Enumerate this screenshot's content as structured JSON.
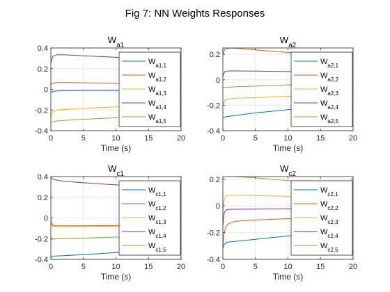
{
  "figure_title": "Fig 7: NN Weights Responses",
  "chart_data": [
    {
      "type": "line",
      "title_base": "W",
      "title_sub": "a1",
      "xlabel": "Time (s)",
      "xlim": [
        0,
        20
      ],
      "ylim": [
        -0.4,
        0.4
      ],
      "xticks": [
        0,
        5,
        10,
        15,
        20
      ],
      "yticks": [
        -0.4,
        -0.2,
        0,
        0.2,
        0.4
      ],
      "grid": true,
      "legend_position": "top-right",
      "series": [
        {
          "name_base": "W",
          "name_sub": "a1,1",
          "color": "#0072BD",
          "x": [
            0,
            0.3,
            1,
            2,
            5,
            10,
            15,
            20
          ],
          "y": [
            -0.03,
            -0.02,
            -0.015,
            -0.013,
            -0.012,
            -0.012,
            -0.012,
            -0.012
          ]
        },
        {
          "name_base": "W",
          "name_sub": "a1,2",
          "color": "#D95319",
          "x": [
            0,
            0.3,
            1,
            2,
            5,
            10,
            15,
            20
          ],
          "y": [
            0.05,
            0.06,
            0.065,
            0.065,
            0.063,
            0.058,
            0.055,
            0.053
          ]
        },
        {
          "name_base": "W",
          "name_sub": "a1,3",
          "color": "#EDB120",
          "x": [
            0,
            0.3,
            1,
            2,
            5,
            10,
            15,
            20
          ],
          "y": [
            -0.27,
            -0.22,
            -0.2,
            -0.195,
            -0.185,
            -0.17,
            -0.16,
            -0.15
          ]
        },
        {
          "name_base": "W",
          "name_sub": "a1,4",
          "color": "#7E2F8E",
          "x": [
            0,
            0.3,
            1,
            2,
            5,
            10,
            15,
            20
          ],
          "y": [
            0.25,
            0.32,
            0.335,
            0.335,
            0.325,
            0.31,
            0.295,
            0.28
          ]
        },
        {
          "name_base": "W",
          "name_sub": "a1,5",
          "color": "#77AC30",
          "x": [
            0,
            0.5,
            2,
            5,
            10,
            15,
            20
          ],
          "y": [
            -0.32,
            -0.31,
            -0.3,
            -0.29,
            -0.275,
            -0.26,
            -0.245
          ]
        }
      ]
    },
    {
      "type": "line",
      "title_base": "W",
      "title_sub": "a2",
      "xlabel": "Time (s)",
      "xlim": [
        0,
        20
      ],
      "ylim": [
        -0.4,
        0.25
      ],
      "xticks": [
        0,
        5,
        10,
        15,
        20
      ],
      "yticks": [
        -0.4,
        -0.2,
        0,
        0.2
      ],
      "grid": true,
      "legend_position": "top-right",
      "series": [
        {
          "name_base": "W",
          "name_sub": "a2,1",
          "color": "#0072BD",
          "x": [
            0,
            0.5,
            2,
            5,
            10,
            15,
            20
          ],
          "y": [
            -0.3,
            -0.29,
            -0.28,
            -0.26,
            -0.235,
            -0.215,
            -0.2
          ]
        },
        {
          "name_base": "W",
          "name_sub": "a2,2",
          "color": "#D95319",
          "x": [
            0,
            0.3,
            1,
            2,
            5,
            10,
            15,
            20
          ],
          "y": [
            0.2,
            0.24,
            0.25,
            0.248,
            0.235,
            0.215,
            0.2,
            0.19
          ]
        },
        {
          "name_base": "W",
          "name_sub": "a2,3",
          "color": "#EDB120",
          "x": [
            0,
            0.3,
            1,
            2,
            5,
            10,
            15,
            20
          ],
          "y": [
            -0.2,
            -0.16,
            -0.15,
            -0.145,
            -0.14,
            -0.13,
            -0.12,
            -0.11
          ]
        },
        {
          "name_base": "W",
          "name_sub": "a2,4",
          "color": "#7E2F8E",
          "x": [
            0,
            0.3,
            1,
            2,
            5,
            10,
            15,
            20
          ],
          "y": [
            0.03,
            0.065,
            0.07,
            0.07,
            0.068,
            0.065,
            0.062,
            0.06
          ]
        },
        {
          "name_base": "W",
          "name_sub": "a2,5",
          "color": "#77AC30",
          "x": [
            0,
            0.5,
            2,
            5,
            10,
            15,
            20
          ],
          "y": [
            -0.06,
            -0.06,
            -0.055,
            -0.05,
            -0.04,
            -0.035,
            -0.03
          ]
        }
      ]
    },
    {
      "type": "line",
      "title_base": "W",
      "title_sub": "c1",
      "xlabel": "Time (s)",
      "xlim": [
        0,
        20
      ],
      "ylim": [
        -0.4,
        0.4
      ],
      "xticks": [
        0,
        5,
        10,
        15,
        20
      ],
      "yticks": [
        -0.4,
        -0.2,
        0,
        0.2,
        0.4
      ],
      "grid": true,
      "legend_position": "top-right",
      "series": [
        {
          "name_base": "W",
          "name_sub": "c1,1",
          "color": "#0072BD",
          "x": [
            0,
            2,
            5,
            10,
            15,
            20
          ],
          "y": [
            -0.37,
            -0.365,
            -0.355,
            -0.335,
            -0.315,
            -0.295
          ]
        },
        {
          "name_base": "W",
          "name_sub": "c1,2",
          "color": "#D95319",
          "x": [
            0,
            0.3,
            1,
            2,
            5,
            10,
            15,
            20
          ],
          "y": [
            -0.02,
            -0.07,
            -0.075,
            -0.075,
            -0.075,
            -0.073,
            -0.072,
            -0.07
          ]
        },
        {
          "name_base": "W",
          "name_sub": "c1,3",
          "color": "#EDB120",
          "x": [
            0,
            0.3,
            1,
            2,
            5,
            10,
            15,
            20
          ],
          "y": [
            -0.05,
            -0.08,
            -0.085,
            -0.085,
            -0.083,
            -0.08,
            -0.078,
            -0.075
          ]
        },
        {
          "name_base": "W",
          "name_sub": "c1,4",
          "color": "#7E2F8E",
          "x": [
            0,
            0.3,
            1,
            2,
            5,
            10,
            15,
            20
          ],
          "y": [
            0.39,
            0.375,
            0.365,
            0.355,
            0.34,
            0.32,
            0.305,
            0.29
          ]
        },
        {
          "name_base": "W",
          "name_sub": "c1,5",
          "color": "#77AC30",
          "x": [
            0,
            2,
            5,
            10,
            15,
            20
          ],
          "y": [
            -0.205,
            -0.2,
            -0.195,
            -0.185,
            -0.17,
            -0.16
          ]
        }
      ]
    },
    {
      "type": "line",
      "title_base": "W",
      "title_sub": "c2",
      "xlabel": "Time (s)",
      "xlim": [
        0,
        20
      ],
      "ylim": [
        -0.4,
        0.22
      ],
      "xticks": [
        0,
        5,
        10,
        15,
        20
      ],
      "yticks": [
        -0.4,
        -0.2,
        0,
        0.2
      ],
      "grid": true,
      "legend_position": "top-right",
      "series": [
        {
          "name_base": "W",
          "name_sub": "c2,1",
          "color": "#0072BD",
          "x": [
            0,
            0.2,
            0.5,
            1,
            2,
            5,
            10,
            15,
            20
          ],
          "y": [
            -0.32,
            -0.29,
            -0.275,
            -0.27,
            -0.265,
            -0.25,
            -0.225,
            -0.205,
            -0.185
          ]
        },
        {
          "name_base": "W",
          "name_sub": "c2,2",
          "color": "#D95319",
          "x": [
            0,
            0.2,
            0.5,
            1,
            2,
            5,
            10,
            15,
            20
          ],
          "y": [
            -0.3,
            -0.2,
            -0.15,
            -0.13,
            -0.115,
            -0.105,
            -0.095,
            -0.09,
            -0.085
          ]
        },
        {
          "name_base": "W",
          "name_sub": "c2,3",
          "color": "#EDB120",
          "x": [
            0,
            0.2,
            0.5,
            1,
            2,
            5,
            10,
            15,
            20
          ],
          "y": [
            -0.05,
            0.05,
            0.075,
            0.08,
            0.08,
            0.078,
            0.072,
            0.068,
            0.065
          ]
        },
        {
          "name_base": "W",
          "name_sub": "c2,4",
          "color": "#7E2F8E",
          "x": [
            0,
            0.2,
            0.5,
            1,
            2,
            5,
            10,
            15,
            20
          ],
          "y": [
            -0.15,
            -0.05,
            -0.03,
            -0.025,
            -0.025,
            -0.024,
            -0.022,
            -0.02,
            -0.02
          ]
        },
        {
          "name_base": "W",
          "name_sub": "c2,5",
          "color": "#77AC30",
          "x": [
            0,
            0.5,
            2,
            5,
            10,
            15,
            20
          ],
          "y": [
            0.22,
            0.225,
            0.22,
            0.21,
            0.19,
            0.175,
            0.16
          ]
        }
      ]
    }
  ]
}
